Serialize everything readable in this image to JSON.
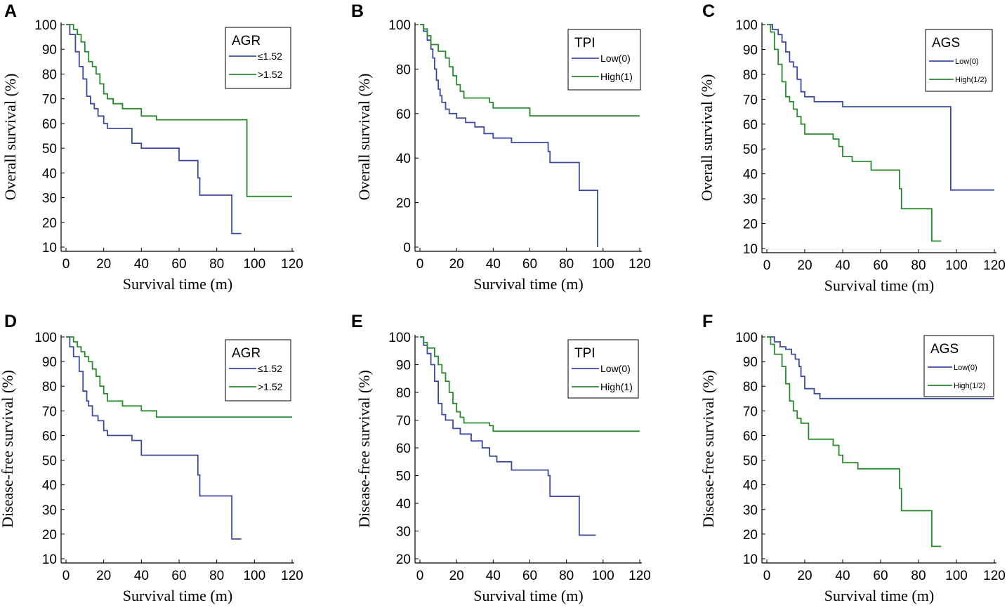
{
  "colors": {
    "low": "#3c4aa5",
    "high": "#2a8a2e",
    "axis": "#000000"
  },
  "chart_data": [
    {
      "panel": "A",
      "type": "line",
      "title": "",
      "xlabel": "Survival time (m)",
      "ylabel": "Overall survival (%)",
      "xlim": [
        0,
        120
      ],
      "ylim": [
        10,
        100
      ],
      "xticks": [
        0,
        20,
        40,
        60,
        80,
        100,
        120
      ],
      "yticks": [
        10,
        20,
        30,
        40,
        50,
        60,
        70,
        80,
        90,
        100
      ],
      "legend": {
        "title": "AGR",
        "position": "top-right",
        "size": "normal"
      },
      "series": [
        {
          "name": "≤1.52",
          "color_key": "low",
          "x": [
            0,
            2,
            2,
            5,
            5,
            7,
            7,
            9,
            9,
            11,
            11,
            13,
            13,
            15,
            15,
            17,
            17,
            20,
            20,
            22,
            22,
            35,
            35,
            40,
            40,
            60,
            60,
            70,
            70,
            71,
            71,
            88,
            88,
            93
          ],
          "y": [
            100,
            100,
            96,
            96,
            89,
            89,
            83,
            83,
            78,
            78,
            71,
            71,
            68,
            68,
            66,
            66,
            63,
            63,
            60,
            60,
            58,
            58,
            52,
            52,
            50,
            50,
            45,
            45,
            38,
            38,
            31,
            31,
            15.5,
            15.5
          ]
        },
        {
          "name": ">1.52",
          "color_key": "high",
          "x": [
            0,
            4,
            4,
            6,
            6,
            8,
            8,
            10,
            10,
            12,
            12,
            14,
            14,
            16,
            16,
            18,
            18,
            20,
            20,
            22,
            22,
            25,
            25,
            30,
            30,
            40,
            40,
            48,
            48,
            96,
            96,
            120
          ],
          "y": [
            100,
            100,
            98,
            98,
            96,
            96,
            93,
            93,
            89,
            89,
            85,
            85,
            83,
            83,
            80,
            80,
            76,
            76,
            72,
            72,
            70,
            70,
            68,
            68,
            66,
            66,
            63,
            63,
            61.5,
            61.5,
            30.5,
            30.5
          ]
        }
      ]
    },
    {
      "panel": "B",
      "type": "line",
      "title": "",
      "xlabel": "Survival time (m)",
      "ylabel": "Overall survival (%)",
      "xlim": [
        0,
        120
      ],
      "ylim": [
        0,
        100
      ],
      "xticks": [
        0,
        20,
        40,
        60,
        80,
        100,
        120
      ],
      "yticks": [
        0,
        20,
        40,
        60,
        80,
        100
      ],
      "legend": {
        "title": "TPI",
        "position": "top-right",
        "size": "normal"
      },
      "series": [
        {
          "name": "Low(0)",
          "color_key": "low",
          "x": [
            0,
            2,
            2,
            4,
            4,
            6,
            6,
            7,
            7,
            8,
            8,
            9,
            9,
            10,
            10,
            11,
            11,
            12,
            12,
            14,
            14,
            16,
            16,
            20,
            20,
            25,
            25,
            30,
            30,
            35,
            35,
            40,
            40,
            50,
            50,
            70,
            70,
            71,
            71,
            87,
            87,
            97,
            97
          ],
          "y": [
            100,
            100,
            97,
            97,
            93,
            93,
            89,
            89,
            85,
            85,
            80,
            80,
            75,
            75,
            71,
            71,
            68,
            68,
            65,
            65,
            62,
            62,
            60,
            60,
            58,
            58,
            56,
            56,
            54,
            54,
            51,
            51,
            49,
            49,
            47,
            47,
            43,
            43,
            38,
            38,
            25.5,
            25.5,
            0
          ]
        },
        {
          "name": "High(1)",
          "color_key": "high",
          "x": [
            0,
            2,
            2,
            4,
            4,
            6,
            6,
            10,
            10,
            14,
            14,
            16,
            16,
            18,
            18,
            20,
            20,
            22,
            22,
            24,
            24,
            30,
            30,
            38,
            38,
            40,
            40,
            60,
            60,
            120
          ],
          "y": [
            100,
            100,
            98,
            98,
            95,
            95,
            91,
            91,
            88,
            88,
            85,
            85,
            81,
            81,
            77,
            77,
            73,
            73,
            70,
            70,
            67,
            67,
            67,
            67,
            65,
            65,
            62.5,
            62.5,
            59,
            59
          ]
        }
      ]
    },
    {
      "panel": "C",
      "type": "line",
      "title": "",
      "xlabel": "Survival time (m)",
      "ylabel": "Overall survival (%)",
      "xlim": [
        0,
        120
      ],
      "ylim": [
        10,
        100
      ],
      "xticks": [
        0,
        20,
        40,
        60,
        80,
        100,
        120
      ],
      "yticks": [
        10,
        20,
        30,
        40,
        50,
        60,
        70,
        80,
        90,
        100
      ],
      "legend": {
        "title": "AGS",
        "position": "top-right",
        "size": "small"
      },
      "series": [
        {
          "name": "Low(0)",
          "color_key": "low",
          "x": [
            0,
            3,
            3,
            6,
            6,
            8,
            8,
            10,
            10,
            12,
            12,
            14,
            14,
            16,
            16,
            18,
            18,
            20,
            20,
            25,
            25,
            30,
            30,
            40,
            40,
            97,
            97,
            120
          ],
          "y": [
            100,
            100,
            98,
            98,
            96,
            96,
            93,
            93,
            89,
            89,
            85,
            85,
            83,
            83,
            78,
            78,
            73,
            73,
            71,
            71,
            69,
            69,
            69,
            69,
            67,
            67,
            33.5,
            33.5
          ]
        },
        {
          "name": "High(1/2)",
          "color_key": "high",
          "x": [
            0,
            2,
            2,
            4,
            4,
            6,
            6,
            8,
            8,
            10,
            10,
            12,
            12,
            14,
            14,
            16,
            16,
            18,
            18,
            20,
            20,
            22,
            22,
            35,
            35,
            38,
            38,
            40,
            40,
            45,
            45,
            55,
            55,
            70,
            70,
            71,
            71,
            87,
            87,
            92
          ],
          "y": [
            100,
            100,
            97,
            97,
            90,
            90,
            84,
            84,
            77,
            77,
            71,
            71,
            69,
            69,
            66,
            66,
            63,
            63,
            60,
            60,
            56,
            56,
            56,
            56,
            54,
            54,
            51,
            51,
            47,
            47,
            45,
            45,
            41.5,
            41.5,
            34,
            34,
            26,
            26,
            13,
            13
          ]
        }
      ]
    },
    {
      "panel": "D",
      "type": "line",
      "title": "",
      "xlabel": "Survival time (m)",
      "ylabel": "Disease-free survival (%)",
      "xlim": [
        0,
        120
      ],
      "ylim": [
        10,
        100
      ],
      "xticks": [
        0,
        20,
        40,
        60,
        80,
        100,
        120
      ],
      "yticks": [
        10,
        20,
        30,
        40,
        50,
        60,
        70,
        80,
        90,
        100
      ],
      "legend": {
        "title": "AGR",
        "position": "top-right",
        "size": "normal"
      },
      "series": [
        {
          "name": "≤1.52",
          "color_key": "low",
          "x": [
            0,
            2,
            2,
            4,
            4,
            7,
            7,
            9,
            9,
            11,
            11,
            12,
            12,
            14,
            14,
            17,
            17,
            20,
            20,
            22,
            22,
            35,
            35,
            40,
            40,
            70,
            70,
            71,
            71,
            88,
            88,
            93
          ],
          "y": [
            100,
            100,
            96,
            96,
            92,
            92,
            86,
            86,
            78,
            78,
            74,
            74,
            72,
            72,
            68,
            68,
            66,
            66,
            62,
            62,
            60,
            60,
            58,
            58,
            52,
            52,
            44,
            44,
            35.5,
            35.5,
            18,
            18
          ]
        },
        {
          "name": ">1.52",
          "color_key": "high",
          "x": [
            0,
            4,
            4,
            6,
            6,
            8,
            8,
            10,
            10,
            12,
            12,
            14,
            14,
            16,
            16,
            18,
            18,
            20,
            20,
            22,
            22,
            30,
            30,
            40,
            40,
            48,
            48,
            120
          ],
          "y": [
            100,
            100,
            98,
            98,
            96,
            96,
            94,
            94,
            92,
            92,
            90,
            90,
            87,
            87,
            84,
            84,
            80,
            80,
            77,
            77,
            74,
            74,
            72,
            72,
            70,
            70,
            67.5,
            67.5
          ]
        }
      ]
    },
    {
      "panel": "E",
      "type": "line",
      "title": "",
      "xlabel": "Survival time (m)",
      "ylabel": "Disease-free survival (%)",
      "xlim": [
        0,
        120
      ],
      "ylim": [
        20,
        100
      ],
      "xticks": [
        0,
        20,
        40,
        60,
        80,
        100,
        120
      ],
      "yticks": [
        20,
        30,
        40,
        50,
        60,
        70,
        80,
        90,
        100
      ],
      "legend": {
        "title": "TPI",
        "position": "top-right",
        "size": "normal"
      },
      "series": [
        {
          "name": "Low(0)",
          "color_key": "low",
          "x": [
            0,
            2,
            2,
            4,
            4,
            6,
            6,
            8,
            8,
            10,
            10,
            12,
            12,
            14,
            14,
            18,
            18,
            22,
            22,
            28,
            28,
            34,
            34,
            38,
            38,
            42,
            42,
            50,
            50,
            70,
            70,
            71,
            71,
            87,
            87,
            96
          ],
          "y": [
            100,
            100,
            97,
            97,
            94,
            94,
            90,
            90,
            84,
            84,
            76,
            76,
            72,
            72,
            70,
            70,
            67,
            67,
            65,
            65,
            62.5,
            62.5,
            60,
            60,
            57,
            57,
            55,
            55,
            52,
            52,
            50,
            50,
            42.5,
            42.5,
            28.5,
            28.5
          ]
        },
        {
          "name": "High(1)",
          "color_key": "high",
          "x": [
            0,
            2,
            2,
            4,
            4,
            8,
            8,
            10,
            10,
            12,
            12,
            14,
            14,
            16,
            16,
            18,
            18,
            20,
            20,
            22,
            22,
            24,
            24,
            38,
            38,
            40,
            40,
            120
          ],
          "y": [
            100,
            100,
            98,
            98,
            96,
            96,
            93,
            93,
            90,
            90,
            87,
            87,
            84,
            84,
            80,
            80,
            76,
            76,
            73,
            73,
            71,
            71,
            69,
            69,
            68,
            68,
            66,
            66
          ]
        }
      ]
    },
    {
      "panel": "F",
      "type": "line",
      "title": "",
      "xlabel": "Survival time (m)",
      "ylabel": "Disease-free survival (%)",
      "xlim": [
        0,
        120
      ],
      "ylim": [
        10,
        100
      ],
      "xticks": [
        0,
        20,
        40,
        60,
        80,
        100,
        120
      ],
      "yticks": [
        10,
        20,
        30,
        40,
        50,
        60,
        70,
        80,
        90,
        100
      ],
      "legend": {
        "title": "AGS",
        "position": "top-right",
        "size": "small"
      },
      "series": [
        {
          "name": "Low(0)",
          "color_key": "low",
          "x": [
            0,
            4,
            4,
            7,
            7,
            10,
            10,
            13,
            13,
            15,
            15,
            17,
            17,
            18,
            18,
            20,
            20,
            25,
            25,
            28,
            28,
            120
          ],
          "y": [
            100,
            100,
            98,
            98,
            96,
            96,
            95,
            95,
            93,
            93,
            91,
            91,
            88,
            88,
            84,
            84,
            79,
            79,
            77,
            77,
            75,
            75
          ]
        },
        {
          "name": "High(1/2)",
          "color_key": "high",
          "x": [
            0,
            2,
            2,
            4,
            4,
            8,
            8,
            10,
            10,
            12,
            12,
            14,
            14,
            16,
            16,
            18,
            18,
            22,
            22,
            35,
            35,
            38,
            38,
            40,
            40,
            48,
            48,
            70,
            70,
            71,
            71,
            87,
            87,
            92
          ],
          "y": [
            100,
            100,
            97,
            97,
            93,
            93,
            88,
            88,
            81,
            81,
            74,
            74,
            70,
            70,
            67,
            67,
            65,
            65,
            58.5,
            58.5,
            56,
            56,
            52,
            52,
            49,
            49,
            46.5,
            46.5,
            38.5,
            38.5,
            29.5,
            29.5,
            15,
            15
          ]
        }
      ]
    }
  ]
}
